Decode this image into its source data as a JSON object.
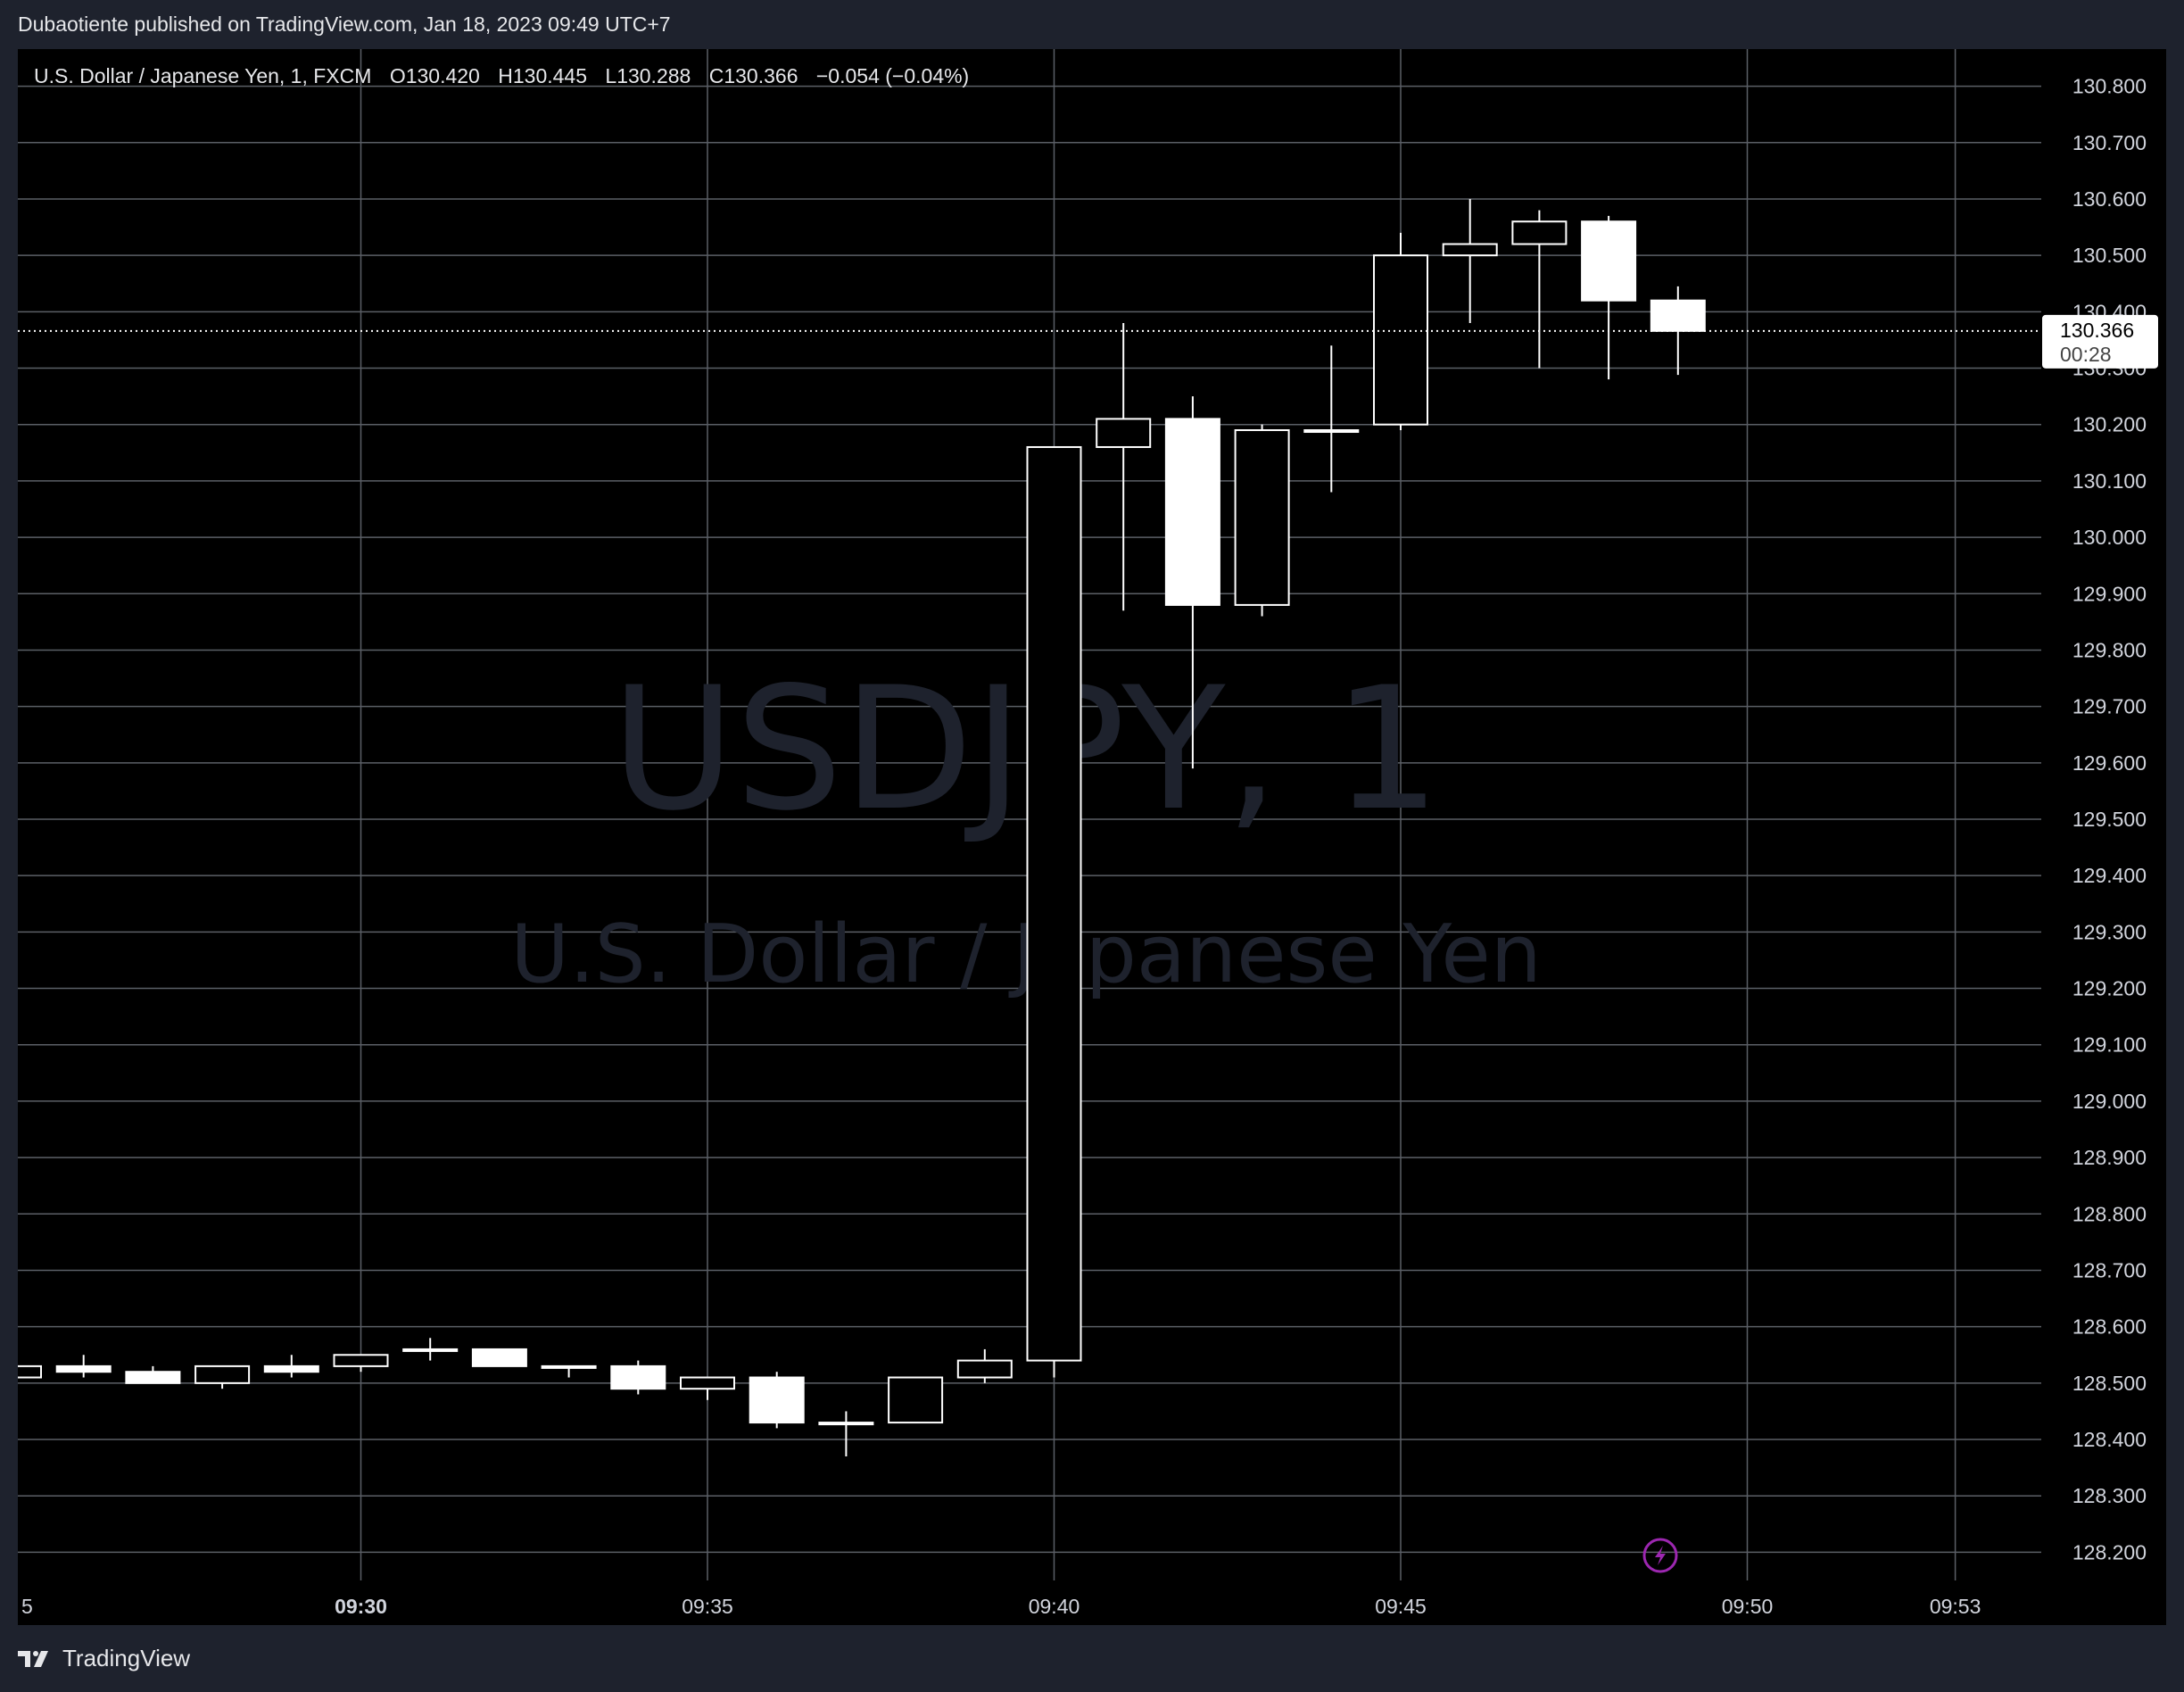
{
  "publisher_line": "Dubaotiente published on TradingView.com, Jan 18, 2023 09:49 UTC+7",
  "footer": {
    "brand": "TradingView",
    "logo_icon": "tradingview-logo-icon"
  },
  "watermark": {
    "symbol": "USDJPY, 1",
    "description": "U.S. Dollar / Japanese Yen"
  },
  "legend": {
    "instrument": "U.S. Dollar / Japanese Yen, 1, FXCM",
    "o_label": "O",
    "o_value": "130.420",
    "h_label": "H",
    "h_value": "130.445",
    "l_label": "L",
    "l_value": "130.288",
    "c_label": "C",
    "c_value": "130.366",
    "change": "−0.054 (−0.04%)"
  },
  "price_tag": {
    "price": "130.366",
    "countdown": "00:28"
  },
  "colors": {
    "background": "#000000",
    "grid": "#5b5f66",
    "candle": "#ffffff",
    "watermark": "#1e222d",
    "flash_icon": "#9c27b0"
  },
  "chart_data": {
    "type": "candlestick",
    "timeframe": "1",
    "y_range": [
      128.15,
      130.85
    ],
    "y_ticks": [
      "128.200",
      "128.300",
      "128.400",
      "128.500",
      "128.600",
      "128.700",
      "128.800",
      "128.900",
      "129.000",
      "129.100",
      "129.200",
      "129.300",
      "129.400",
      "129.500",
      "129.600",
      "129.700",
      "129.800",
      "129.900",
      "130.000",
      "130.100",
      "130.200",
      "130.300",
      "130.400",
      "130.500",
      "130.600",
      "130.700",
      "130.800"
    ],
    "x_range": [
      "09:25",
      "09:54"
    ],
    "x_ticks": [
      {
        "time": "09:25",
        "label": "5"
      },
      {
        "time": "09:30",
        "label": "09:30",
        "bold": true
      },
      {
        "time": "09:35",
        "label": "09:35"
      },
      {
        "time": "09:40",
        "label": "09:40"
      },
      {
        "time": "09:45",
        "label": "09:45"
      },
      {
        "time": "09:50",
        "label": "09:50"
      },
      {
        "time": "09:53",
        "label": "09:53"
      }
    ],
    "last_price": 130.366,
    "candles": [
      {
        "t": "09:25",
        "o": 128.51,
        "h": 128.53,
        "l": 128.5,
        "c": 128.53
      },
      {
        "t": "09:26",
        "o": 128.53,
        "h": 128.55,
        "l": 128.51,
        "c": 128.52
      },
      {
        "t": "09:27",
        "o": 128.52,
        "h": 128.53,
        "l": 128.5,
        "c": 128.5
      },
      {
        "t": "09:28",
        "o": 128.5,
        "h": 128.53,
        "l": 128.49,
        "c": 128.53
      },
      {
        "t": "09:29",
        "o": 128.53,
        "h": 128.55,
        "l": 128.51,
        "c": 128.52
      },
      {
        "t": "09:30",
        "o": 128.53,
        "h": 128.55,
        "l": 128.52,
        "c": 128.55
      },
      {
        "t": "09:31",
        "o": 128.56,
        "h": 128.58,
        "l": 128.54,
        "c": 128.56
      },
      {
        "t": "09:32",
        "o": 128.56,
        "h": 128.56,
        "l": 128.53,
        "c": 128.53
      },
      {
        "t": "09:33",
        "o": 128.53,
        "h": 128.53,
        "l": 128.51,
        "c": 128.53
      },
      {
        "t": "09:34",
        "o": 128.53,
        "h": 128.54,
        "l": 128.48,
        "c": 128.49
      },
      {
        "t": "09:35",
        "o": 128.49,
        "h": 128.51,
        "l": 128.47,
        "c": 128.51
      },
      {
        "t": "09:36",
        "o": 128.51,
        "h": 128.52,
        "l": 128.42,
        "c": 128.43
      },
      {
        "t": "09:37",
        "o": 128.43,
        "h": 128.45,
        "l": 128.37,
        "c": 128.43
      },
      {
        "t": "09:38",
        "o": 128.43,
        "h": 128.51,
        "l": 128.43,
        "c": 128.51
      },
      {
        "t": "09:39",
        "o": 128.51,
        "h": 128.56,
        "l": 128.5,
        "c": 128.54
      },
      {
        "t": "09:40",
        "o": 128.54,
        "h": 130.16,
        "l": 128.51,
        "c": 130.16
      },
      {
        "t": "09:41",
        "o": 130.16,
        "h": 130.38,
        "l": 129.87,
        "c": 130.21
      },
      {
        "t": "09:42",
        "o": 130.21,
        "h": 130.25,
        "l": 129.59,
        "c": 129.88
      },
      {
        "t": "09:43",
        "o": 129.88,
        "h": 130.2,
        "l": 129.86,
        "c": 130.19
      },
      {
        "t": "09:44",
        "o": 130.19,
        "h": 130.34,
        "l": 130.08,
        "c": 130.19
      },
      {
        "t": "09:45",
        "o": 130.2,
        "h": 130.54,
        "l": 130.19,
        "c": 130.5
      },
      {
        "t": "09:46",
        "o": 130.5,
        "h": 130.6,
        "l": 130.38,
        "c": 130.52
      },
      {
        "t": "09:47",
        "o": 130.52,
        "h": 130.58,
        "l": 130.3,
        "c": 130.56
      },
      {
        "t": "09:48",
        "o": 130.56,
        "h": 130.57,
        "l": 130.28,
        "c": 130.42
      },
      {
        "t": "09:49",
        "o": 130.42,
        "h": 130.445,
        "l": 130.288,
        "c": 130.366
      }
    ]
  }
}
